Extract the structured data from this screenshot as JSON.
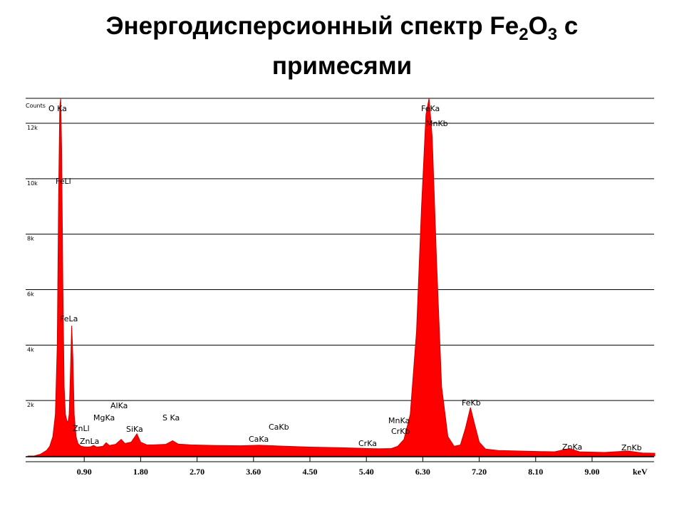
{
  "chart_data": {
    "type": "area",
    "title": [
      [
        {
          "text": "Энергодисперсионный спектр Fe"
        },
        {
          "text": "2",
          "sub": true
        },
        {
          "text": "O"
        },
        {
          "text": "3",
          "sub": true
        },
        {
          "text": " с"
        }
      ],
      [
        {
          "text": "примесями"
        }
      ]
    ],
    "y_label": "Counts",
    "x_label": "keV",
    "color": "#ff0000",
    "grid": true,
    "xlim": [
      0,
      10
    ],
    "ylim": [
      0,
      12900
    ],
    "xticks": [
      {
        "value": 0.9,
        "label": "0.90"
      },
      {
        "value": 1.8,
        "label": "1.80"
      },
      {
        "value": 2.7,
        "label": "2.70"
      },
      {
        "value": 3.6,
        "label": "3.60"
      },
      {
        "value": 4.5,
        "label": "4.50"
      },
      {
        "value": 5.4,
        "label": "5.40"
      },
      {
        "value": 6.3,
        "label": "6.30"
      },
      {
        "value": 7.2,
        "label": "7.20"
      },
      {
        "value": 8.1,
        "label": "8.10"
      },
      {
        "value": 9.0,
        "label": "9.00"
      }
    ],
    "yticks": [
      {
        "value": 2000,
        "label": "2k"
      },
      {
        "value": 4000,
        "label": "4k"
      },
      {
        "value": 6000,
        "label": "6k"
      },
      {
        "value": 8000,
        "label": "8k"
      },
      {
        "value": 10000,
        "label": "10k"
      },
      {
        "value": 12000,
        "label": "12k"
      }
    ],
    "x": [
      0,
      0.1,
      0.2,
      0.3,
      0.35,
      0.4,
      0.44,
      0.47,
      0.49,
      0.51,
      0.525,
      0.54,
      0.56,
      0.58,
      0.6,
      0.62,
      0.64,
      0.66,
      0.68,
      0.7,
      0.72,
      0.74,
      0.77,
      0.8,
      0.85,
      0.9,
      0.95,
      1.0,
      1.05,
      1.1,
      1.2,
      1.25,
      1.3,
      1.4,
      1.49,
      1.55,
      1.65,
      1.74,
      1.8,
      1.9,
      2.0,
      2.2,
      2.31,
      2.4,
      2.6,
      3.0,
      3.4,
      3.69,
      4.01,
      4.5,
      5.0,
      5.41,
      5.6,
      5.8,
      5.9,
      6.0,
      6.1,
      6.2,
      6.28,
      6.35,
      6.4,
      6.45,
      6.52,
      6.6,
      6.7,
      6.8,
      6.9,
      6.98,
      7.06,
      7.12,
      7.2,
      7.3,
      7.5,
      8.0,
      8.4,
      8.64,
      8.8,
      9.2,
      9.57,
      9.8,
      10.0
    ],
    "values": [
      0,
      0,
      60,
      200,
      350,
      700,
      1500,
      4000,
      9000,
      12600,
      12900,
      11000,
      6000,
      2500,
      1500,
      1300,
      1200,
      1500,
      3000,
      4700,
      3500,
      1500,
      700,
      450,
      350,
      330,
      320,
      330,
      380,
      320,
      350,
      480,
      380,
      420,
      600,
      450,
      500,
      800,
      500,
      400,
      400,
      420,
      550,
      430,
      400,
      380,
      370,
      390,
      360,
      320,
      300,
      270,
      260,
      270,
      350,
      600,
      1500,
      4500,
      9000,
      12300,
      12900,
      11500,
      7000,
      2500,
      700,
      350,
      400,
      1000,
      1750,
      1200,
      500,
      250,
      200,
      170,
      150,
      270,
      150,
      130,
      180,
      110,
      100
    ],
    "annotations": [
      "O Ka",
      "FeLl",
      "FeLa",
      "ZnLl",
      "ZnLa",
      "MgKa",
      "AlKa",
      "SiKa",
      "S Ka",
      "CaKa",
      "CaKb",
      "CrKa",
      "MnKa",
      "CrKb",
      "FeKa",
      "MnKb",
      "FeKb",
      "ZnKa",
      "ZnKb"
    ]
  }
}
